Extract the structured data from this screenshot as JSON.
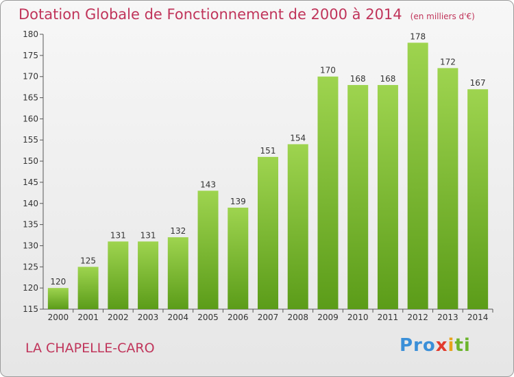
{
  "header": {
    "title": "Dotation Globale de Fonctionnement de 2000 à 2014",
    "subtitle": "(en milliers d'€)"
  },
  "footer": {
    "commune": "LA CHAPELLE-CARO",
    "logo": [
      "Pro",
      "x",
      "i",
      "ti"
    ]
  },
  "colors": {
    "title": "#c0345a",
    "bar_top": "#9ed44f",
    "bar_bottom": "#5b9c19"
  },
  "chart_data": {
    "type": "bar",
    "title": "Dotation Globale de Fonctionnement de 2000 à 2014",
    "subtitle": "(en milliers d'€)",
    "categories": [
      "2000",
      "2001",
      "2002",
      "2003",
      "2004",
      "2005",
      "2006",
      "2007",
      "2008",
      "2009",
      "2010",
      "2011",
      "2012",
      "2013",
      "2014"
    ],
    "values": [
      120,
      125,
      131,
      131,
      132,
      143,
      139,
      151,
      154,
      170,
      168,
      168,
      178,
      172,
      167
    ],
    "ylim": [
      115,
      180
    ],
    "yticks": [
      115,
      120,
      125,
      130,
      135,
      140,
      145,
      150,
      155,
      160,
      165,
      170,
      175,
      180
    ],
    "grid": false,
    "legend": "none",
    "xlabel": "",
    "ylabel": ""
  }
}
